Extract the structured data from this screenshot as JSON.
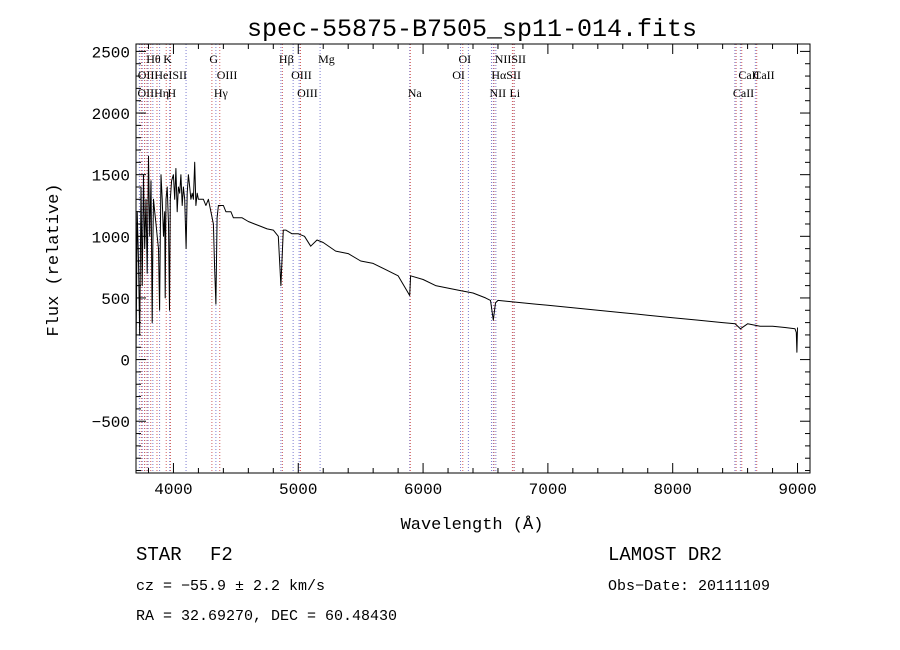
{
  "chart_data": {
    "type": "line",
    "title": "spec-55875-B7505_sp11-014.fits",
    "xlabel": "Wavelength (Å)",
    "ylabel": "Flux (relative)",
    "xlim": [
      3700,
      9100
    ],
    "ylim": [
      -920,
      2560
    ],
    "x_ticks": [
      4000,
      5000,
      6000,
      7000,
      8000,
      9000
    ],
    "y_ticks": [
      -500,
      0,
      500,
      1000,
      1500,
      2000,
      2500
    ],
    "grid": false,
    "series": [
      {
        "x": [
          3700,
          3710,
          3720,
          3730,
          3740,
          3750,
          3760,
          3770,
          3780,
          3790,
          3800,
          3810,
          3820,
          3830,
          3835,
          3840,
          3850,
          3860,
          3870,
          3880,
          3889,
          3895,
          3900,
          3910,
          3920,
          3930,
          3934,
          3940,
          3950,
          3960,
          3968,
          3975,
          3985,
          4000,
          4010,
          4020,
          4030,
          4040,
          4050,
          4060,
          4070,
          4080,
          4090,
          4101,
          4110,
          4120,
          4130,
          4140,
          4150,
          4160,
          4170,
          4180,
          4190,
          4200,
          4220,
          4240,
          4260,
          4280,
          4300,
          4320,
          4330,
          4340,
          4350,
          4360,
          4380,
          4400,
          4420,
          4440,
          4460,
          4480,
          4500,
          4550,
          4600,
          4650,
          4700,
          4750,
          4800,
          4840,
          4861,
          4880,
          4900,
          4950,
          5000,
          5050,
          5100,
          5150,
          5200,
          5300,
          5400,
          5500,
          5600,
          5700,
          5800,
          5893,
          5900,
          6000,
          6100,
          6200,
          6300,
          6400,
          6500,
          6540,
          6563,
          6580,
          6600,
          6700,
          6800,
          6900,
          7000,
          7200,
          7400,
          7600,
          7800,
          8000,
          8200,
          8400,
          8500,
          8542,
          8600,
          8700,
          8800,
          8900,
          8980,
          8990,
          8995,
          9000
        ],
        "y": [
          0,
          1200,
          800,
          200,
          1400,
          600,
          1500,
          900,
          1300,
          700,
          1650,
          1000,
          1450,
          300,
          900,
          1300,
          1200,
          1100,
          1000,
          900,
          400,
          1000,
          1500,
          1300,
          1000,
          1200,
          500,
          1300,
          1400,
          1100,
          400,
          1300,
          1450,
          1500,
          1300,
          1550,
          1200,
          1400,
          1350,
          1500,
          1250,
          1400,
          1300,
          900,
          1350,
          1500,
          1400,
          1300,
          1350,
          1300,
          1600,
          1250,
          1350,
          1300,
          1300,
          1300,
          1250,
          1300,
          1200,
          1100,
          750,
          450,
          1150,
          1250,
          1250,
          1250,
          1200,
          1200,
          1200,
          1150,
          1150,
          1150,
          1120,
          1100,
          1080,
          1060,
          1050,
          1000,
          600,
          1050,
          1050,
          1020,
          1020,
          1000,
          920,
          970,
          950,
          880,
          860,
          800,
          780,
          730,
          680,
          520,
          680,
          650,
          600,
          580,
          560,
          540,
          500,
          480,
          320,
          460,
          480,
          470,
          460,
          450,
          440,
          420,
          400,
          380,
          360,
          340,
          320,
          300,
          290,
          250,
          290,
          270,
          270,
          260,
          250,
          220,
          60,
          260
        ]
      }
    ],
    "lines_top": [
      {
        "label": "Hθ",
        "x": 3798
      },
      {
        "label": "K",
        "x": 3934
      },
      {
        "label": "G",
        "x": 4304
      },
      {
        "label": "Hβ",
        "x": 4861
      },
      {
        "label": "Mg",
        "x": 5175
      },
      {
        "label": "OI",
        "x": 6300
      },
      {
        "label": "NIISII",
        "x": 6590
      }
    ],
    "lines_mid": [
      {
        "label": "OIIHeISII",
        "x": 3730
      },
      {
        "label": "OIII",
        "x": 4363
      },
      {
        "label": "OIII",
        "x": 4959
      },
      {
        "label": "OI",
        "x": 6250
      },
      {
        "label": "HαSII",
        "x": 6563
      },
      {
        "label": "CaII",
        "x": 8542
      },
      {
        "label": "CaII",
        "x": 8662
      }
    ],
    "lines_bot": [
      {
        "label": "OIIHη",
        "x": 3728
      },
      {
        "label": "H",
        "x": 3968
      },
      {
        "label": "Hγ",
        "x": 4340
      },
      {
        "label": "OIII",
        "x": 5007
      },
      {
        "label": "Na",
        "x": 5893
      },
      {
        "label": "NII",
        "x": 6548
      },
      {
        "label": "Li",
        "x": 6708
      },
      {
        "label": "CaII",
        "x": 8498
      }
    ],
    "blue_markers": [
      3727,
      3750,
      3770,
      3797,
      3835,
      3889,
      3970,
      4101,
      4340,
      4861,
      4959,
      5007,
      5175,
      5893,
      6300,
      6363,
      6548,
      6563,
      6583,
      6716,
      6731,
      8498,
      8542,
      8662
    ],
    "red_markers": [
      3734,
      3760,
      3780,
      3810,
      3860,
      3934,
      3968,
      4300,
      4363,
      4865,
      5010,
      5890,
      6310,
      6560,
      6708,
      6720,
      8500,
      8545,
      8665
    ]
  },
  "footer": {
    "object_class": "STAR",
    "subclass": "F2",
    "survey": "LAMOST DR2",
    "velocity": "cz = −55.9 ± 2.2 km/s",
    "obs_date": "Obs−Date: 20111109",
    "coords": "RA =  32.69270, DEC =  60.48430"
  }
}
